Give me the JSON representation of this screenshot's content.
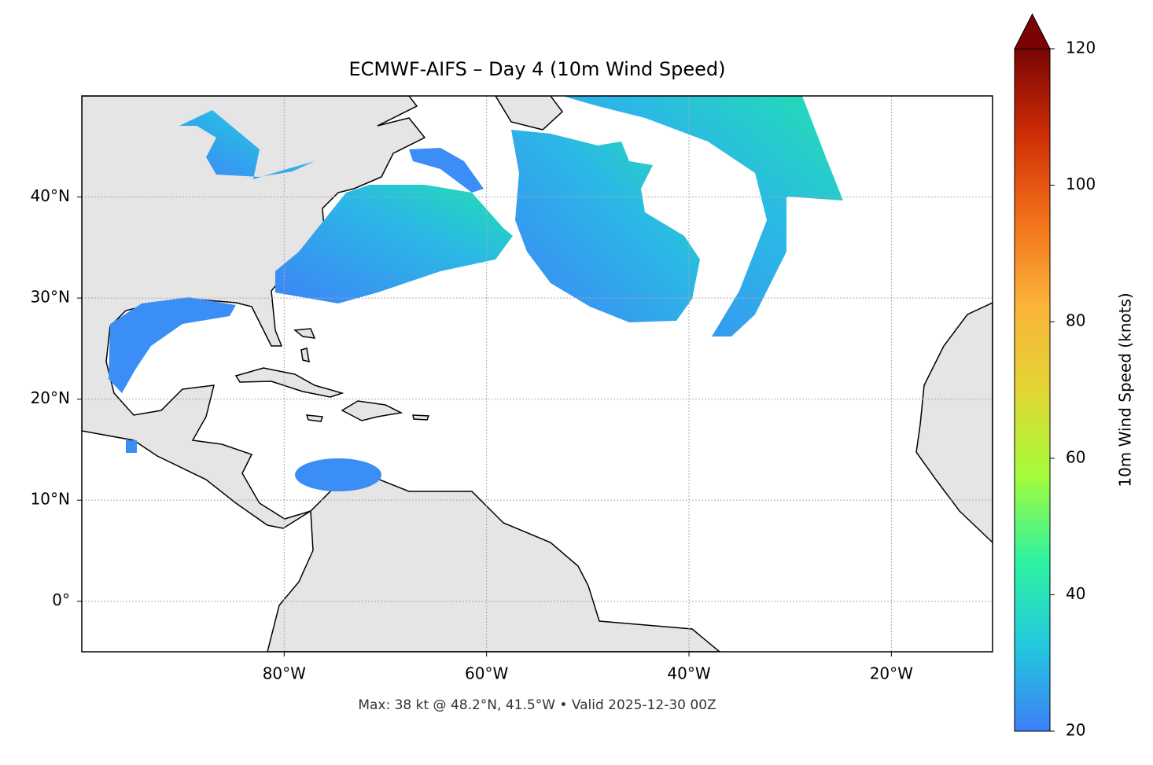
{
  "chart_data": {
    "type": "map",
    "title": "ECMWF-AIFS – Day 4 (10m Wind Speed)",
    "caption": "Max: 38 kt @ 48.2°N, 41.5°W • Valid 2025-12-30 00Z",
    "xlim": [
      -100,
      -10
    ],
    "ylim": [
      -5,
      50
    ],
    "xticks": [
      {
        "value": -80,
        "label": "80°W"
      },
      {
        "value": -60,
        "label": "60°W"
      },
      {
        "value": -40,
        "label": "40°W"
      },
      {
        "value": -20,
        "label": "20°W"
      }
    ],
    "yticks": [
      {
        "value": 0,
        "label": "0°"
      },
      {
        "value": 10,
        "label": "10°N"
      },
      {
        "value": 20,
        "label": "20°N"
      },
      {
        "value": 30,
        "label": "30°N"
      },
      {
        "value": 40,
        "label": "40°N"
      }
    ],
    "grid": true,
    "colorbar": {
      "label": "10m Wind Speed (knots)",
      "lim": [
        20,
        120
      ],
      "ticks": [
        20,
        40,
        60,
        80,
        100,
        120
      ],
      "colors": [
        "#3d7ef8",
        "#22c8dd",
        "#2ef2a0",
        "#a5fc3c",
        "#e2d534",
        "#fbb33a",
        "#f3701a",
        "#ce2d05",
        "#7a0403"
      ]
    }
  }
}
